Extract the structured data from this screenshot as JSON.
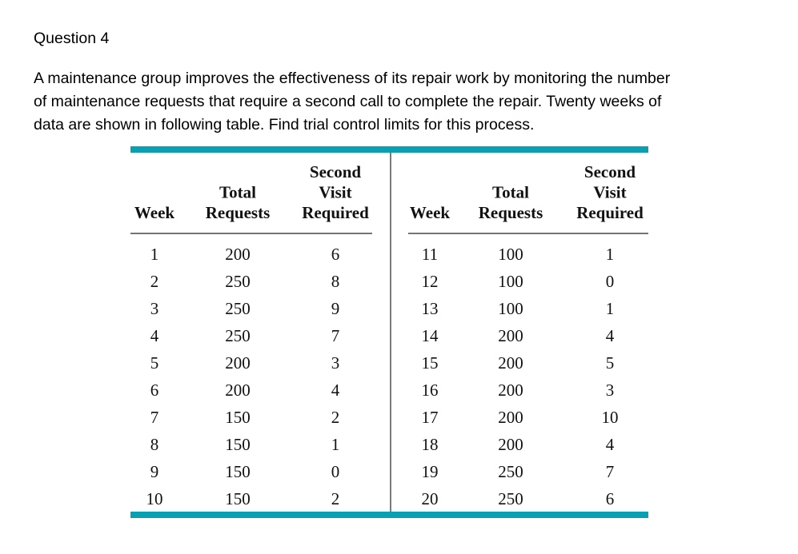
{
  "question": {
    "title": "Question 4",
    "paragraph_lines": [
      "A maintenance group improves the effectiveness of its repair work by monitoring the number",
      "of maintenance requests that require a second call to complete the repair. Twenty weeks of",
      "data are shown in following table. Find trial control limits for this process."
    ]
  },
  "table": {
    "columns": [
      [
        "Week"
      ],
      [
        "Total",
        "Requests"
      ],
      [
        "Second",
        "Visit",
        "Required"
      ]
    ],
    "rows": [
      [
        1,
        200,
        6
      ],
      [
        2,
        250,
        8
      ],
      [
        3,
        250,
        9
      ],
      [
        4,
        250,
        7
      ],
      [
        5,
        200,
        3
      ],
      [
        6,
        200,
        4
      ],
      [
        7,
        150,
        2
      ],
      [
        8,
        150,
        1
      ],
      [
        9,
        150,
        0
      ],
      [
        10,
        150,
        2
      ],
      [
        11,
        100,
        1
      ],
      [
        12,
        100,
        0
      ],
      [
        13,
        100,
        1
      ],
      [
        14,
        200,
        4
      ],
      [
        15,
        200,
        5
      ],
      [
        16,
        200,
        3
      ],
      [
        17,
        200,
        10
      ],
      [
        18,
        200,
        4
      ],
      [
        19,
        250,
        7
      ],
      [
        20,
        250,
        6
      ]
    ]
  }
}
